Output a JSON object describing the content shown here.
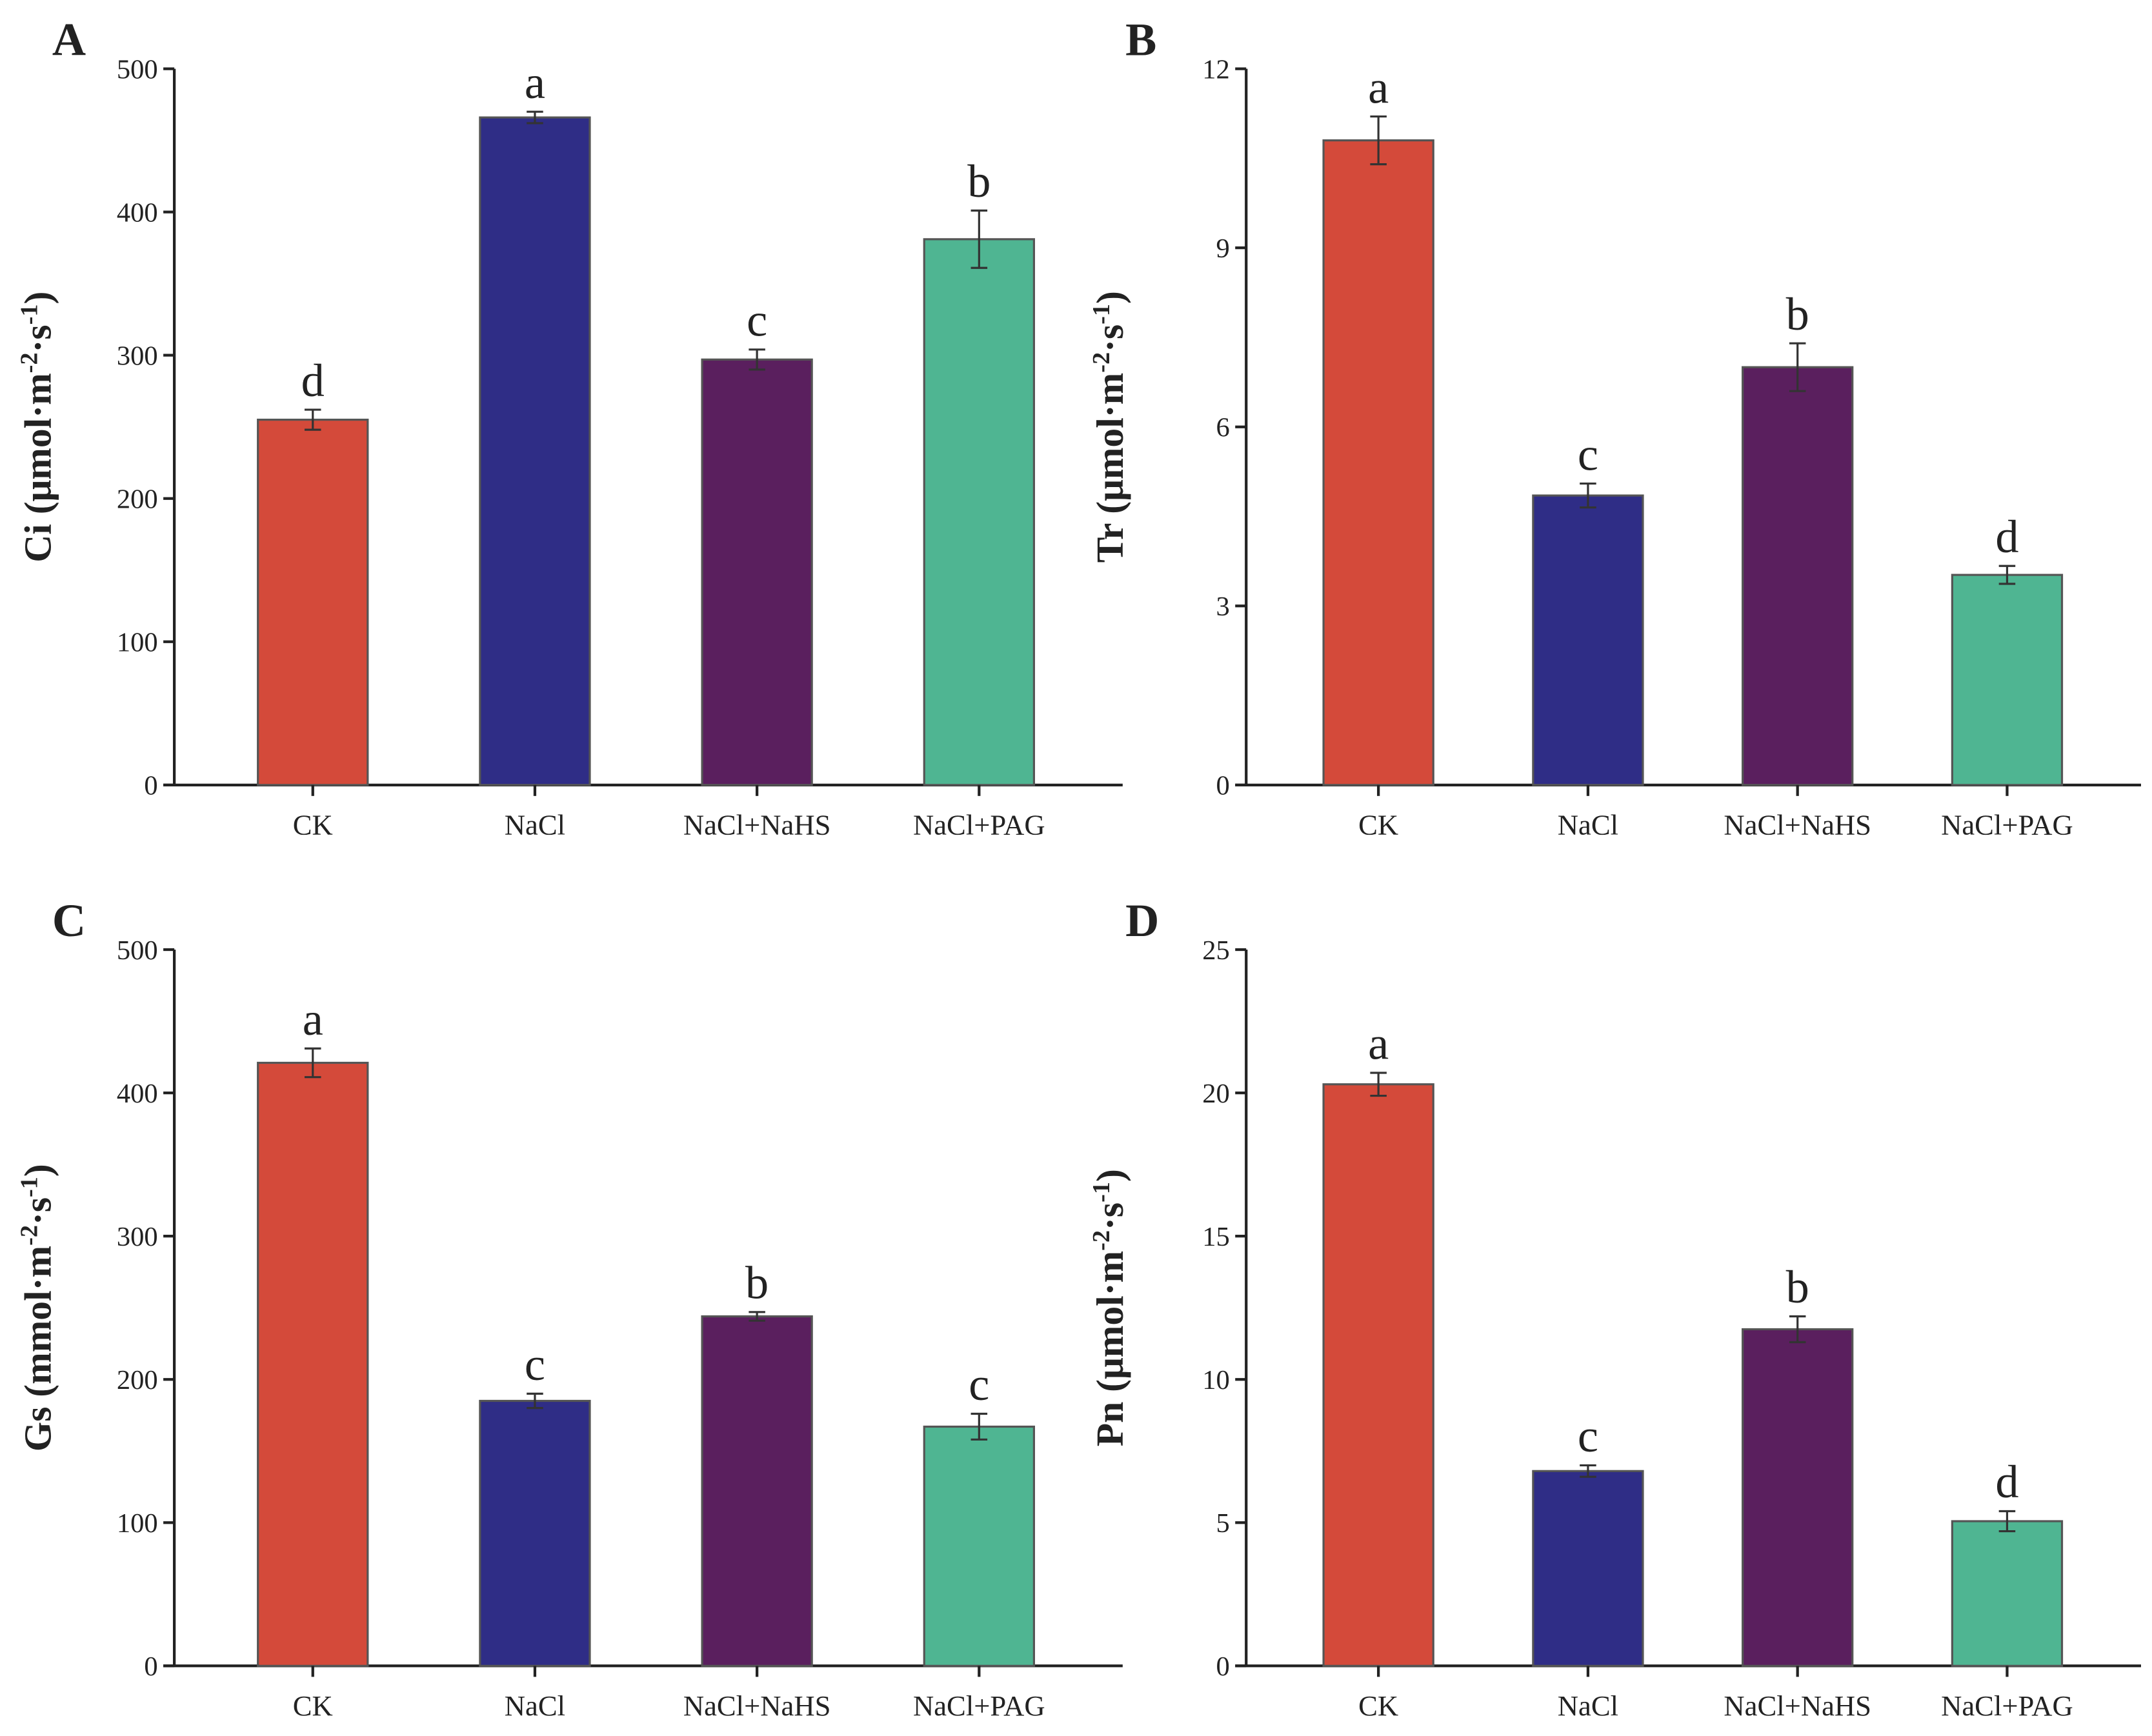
{
  "colors": [
    "#d44a3a",
    "#2f2d86",
    "#5a1f5e",
    "#4fb592"
  ],
  "chart_data": [
    {
      "type": "bar",
      "panel_label": "A",
      "ylabel": "Ci (μmol·m⁻²·s⁻¹)",
      "ylabel_main": "Ci (μmol·m",
      "ylabel_sup1": "-2",
      "ylabel_mid": "·s",
      "ylabel_sup2": "-1",
      "ylabel_end": ")",
      "categories": [
        "CK",
        "NaCl",
        "NaCl+NaHS",
        "NaCl+PAG"
      ],
      "values": [
        255,
        466,
        297,
        381
      ],
      "errors": [
        7,
        4,
        7,
        20
      ],
      "letters": [
        "d",
        "a",
        "c",
        "b"
      ],
      "ylim": [
        0,
        500
      ],
      "yticks": [
        0,
        100,
        200,
        300,
        400,
        500
      ]
    },
    {
      "type": "bar",
      "panel_label": "B",
      "ylabel_main": "Tr (μmol·m",
      "ylabel_sup1": "-2",
      "ylabel_mid": "·s",
      "ylabel_sup2": "-1",
      "ylabel_end": ")",
      "categories": [
        "CK",
        "NaCl",
        "NaCl+NaHS",
        "NaCl+PAG"
      ],
      "values": [
        10.8,
        4.85,
        7.0,
        3.52
      ],
      "errors": [
        0.4,
        0.2,
        0.4,
        0.15
      ],
      "letters": [
        "a",
        "c",
        "b",
        "d"
      ],
      "ylim": [
        0,
        12
      ],
      "yticks": [
        0,
        3,
        6,
        9,
        12
      ]
    },
    {
      "type": "bar",
      "panel_label": "C",
      "ylabel_main": "Gs (mmol·m",
      "ylabel_sup1": "-2",
      "ylabel_mid": "·s",
      "ylabel_sup2": "-1",
      "ylabel_end": ")",
      "categories": [
        "CK",
        "NaCl",
        "NaCl+NaHS",
        "NaCl+PAG"
      ],
      "values": [
        421,
        185,
        244,
        167
      ],
      "errors": [
        10,
        5,
        3,
        9
      ],
      "letters": [
        "a",
        "c",
        "b",
        "c"
      ],
      "ylim": [
        0,
        500
      ],
      "yticks": [
        0,
        100,
        200,
        300,
        400,
        500
      ]
    },
    {
      "type": "bar",
      "panel_label": "D",
      "ylabel_main": "Pn (μmol·m",
      "ylabel_sup1": "-2",
      "ylabel_mid": "·s",
      "ylabel_sup2": "-1",
      "ylabel_end": ")",
      "categories": [
        "CK",
        "NaCl",
        "NaCl+NaHS",
        "NaCl+PAG"
      ],
      "values": [
        20.3,
        6.8,
        11.75,
        5.05
      ],
      "errors": [
        0.4,
        0.2,
        0.45,
        0.35
      ],
      "letters": [
        "a",
        "c",
        "b",
        "d"
      ],
      "ylim": [
        0,
        25
      ],
      "yticks": [
        0,
        5,
        10,
        15,
        20,
        25
      ]
    }
  ]
}
